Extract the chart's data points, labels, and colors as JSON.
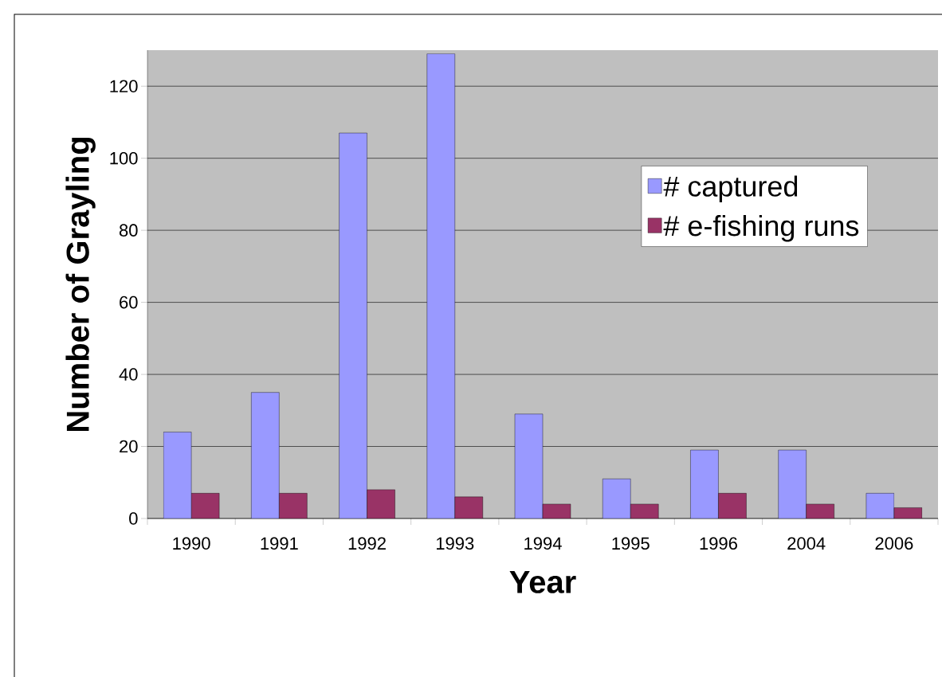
{
  "chart_data": {
    "type": "bar",
    "xlabel": "Year",
    "ylabel": "Number of Grayling",
    "categories": [
      "1990",
      "1991",
      "1992",
      "1993",
      "1994",
      "1995",
      "1996",
      "2004",
      "2006"
    ],
    "series": [
      {
        "name": "# captured",
        "color": "#9999ff",
        "values": [
          24,
          35,
          107,
          129,
          29,
          11,
          19,
          19,
          7
        ]
      },
      {
        "name": "# e-fishing runs",
        "color": "#993366",
        "values": [
          7,
          7,
          8,
          6,
          4,
          4,
          7,
          4,
          3
        ]
      }
    ],
    "ylim": [
      0,
      130
    ],
    "yticks": [
      0,
      20,
      40,
      60,
      80,
      100,
      120
    ],
    "grid": "y",
    "legend": "top right"
  }
}
